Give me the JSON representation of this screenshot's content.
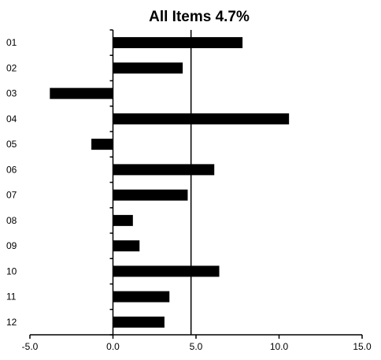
{
  "chart_data": {
    "type": "bar",
    "orientation": "horizontal",
    "title": "All Items 4.7%",
    "categories": [
      "01",
      "02",
      "03",
      "04",
      "05",
      "06",
      "07",
      "08",
      "09",
      "10",
      "11",
      "12"
    ],
    "values": [
      7.8,
      4.2,
      -3.8,
      10.6,
      -1.3,
      6.1,
      4.5,
      1.2,
      1.6,
      6.4,
      3.4,
      3.1
    ],
    "reference_line": 4.7,
    "xlim": [
      -5,
      15
    ],
    "xticks": [
      -5,
      0,
      5,
      10,
      15
    ],
    "xtick_labels": [
      "-5.0",
      "0.0",
      "5.0",
      "10.0",
      "15.0"
    ],
    "xlabel": "",
    "ylabel": "",
    "grid": false,
    "legend": "none",
    "bar_color": "#000000"
  }
}
